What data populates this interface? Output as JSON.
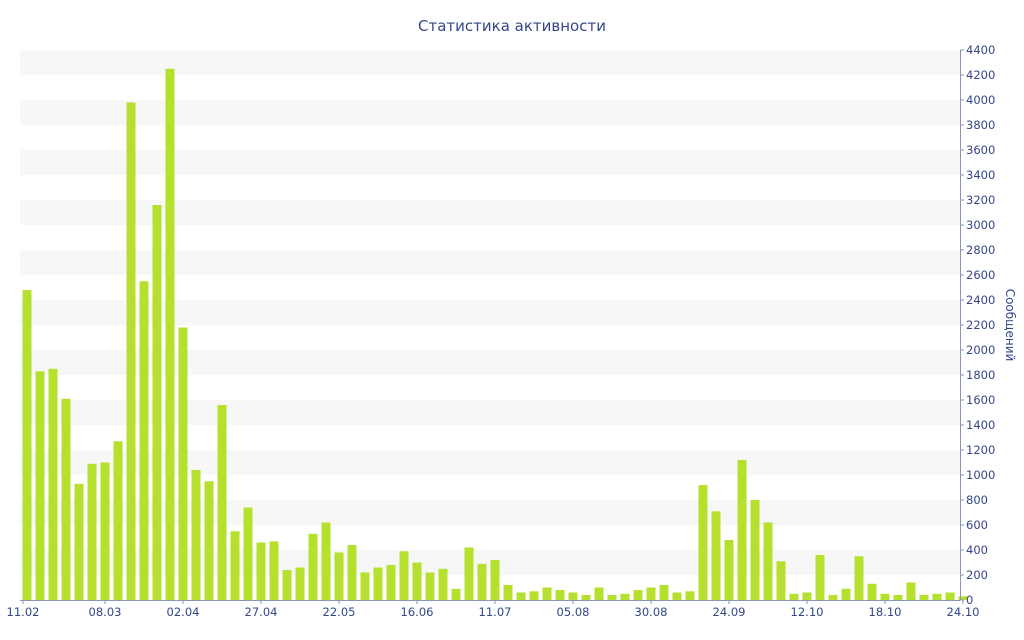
{
  "chart_data": {
    "type": "bar",
    "title": "Статистика активности",
    "xlabel": "",
    "ylabel": "Сообщений",
    "y_axis_side": "right",
    "ylim": [
      0,
      4400
    ],
    "y_ticks": [
      0,
      200,
      400,
      600,
      800,
      1000,
      1200,
      1400,
      1600,
      1800,
      2000,
      2200,
      2400,
      2600,
      2800,
      3000,
      3200,
      3400,
      3600,
      3800,
      4000,
      4200,
      4400
    ],
    "grid": "alternating-bands",
    "bar_color": "#b5e02d",
    "x_tick_labels": [
      {
        "index": 0,
        "label": "11.02"
      },
      {
        "index": 6,
        "label": "08.03"
      },
      {
        "index": 12,
        "label": "02.04"
      },
      {
        "index": 18,
        "label": "27.04"
      },
      {
        "index": 24,
        "label": "22.05"
      },
      {
        "index": 30,
        "label": "16.06"
      },
      {
        "index": 36,
        "label": "11.07"
      },
      {
        "index": 42,
        "label": "05.08"
      },
      {
        "index": 48,
        "label": "30.08"
      },
      {
        "index": 54,
        "label": "24.09"
      },
      {
        "index": 60,
        "label": "12.10"
      },
      {
        "index": 66,
        "label": "18.10"
      },
      {
        "index": 72,
        "label": "24.10"
      }
    ],
    "values": [
      2480,
      1830,
      1850,
      1610,
      930,
      1090,
      1100,
      1270,
      3980,
      2550,
      3160,
      4250,
      2180,
      1040,
      950,
      1560,
      550,
      740,
      460,
      470,
      240,
      260,
      530,
      620,
      380,
      440,
      220,
      260,
      280,
      390,
      300,
      220,
      250,
      90,
      420,
      290,
      320,
      120,
      60,
      70,
      100,
      80,
      60,
      40,
      100,
      40,
      50,
      80,
      100,
      120,
      60,
      70,
      920,
      710,
      480,
      1120,
      800,
      620,
      310,
      50,
      60,
      360,
      40,
      90,
      350,
      130,
      50,
      40,
      140,
      40,
      50,
      60,
      30
    ]
  }
}
